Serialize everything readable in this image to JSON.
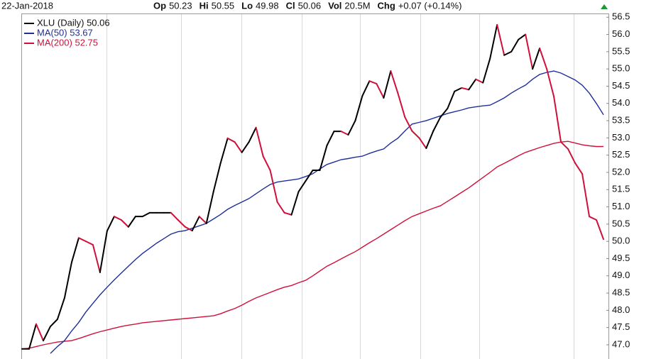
{
  "chart_data": {
    "type": "line",
    "date": "22-Jan-2018",
    "quote": [
      {
        "label": "Op",
        "value": "50.23"
      },
      {
        "label": "Hi",
        "value": "50.55"
      },
      {
        "label": "Lo",
        "value": "49.98"
      },
      {
        "label": "Cl",
        "value": "50.06"
      },
      {
        "label": "Vol",
        "value": "20.5M"
      },
      {
        "label": "Chg",
        "value": "+0.07 (+0.14%)"
      }
    ],
    "ylim": [
      46.6,
      56.6
    ],
    "yticks": [
      {
        "value": 47,
        "label": "47.0"
      },
      47.5,
      {
        "value": 48,
        "label": "48.0"
      },
      48.5,
      {
        "value": 49,
        "label": "49.0"
      },
      49.5,
      {
        "value": 50,
        "label": "50.0"
      },
      50.5,
      {
        "value": 51,
        "label": "51.0"
      },
      51.5,
      {
        "value": 52,
        "label": "52.0"
      },
      52.5,
      {
        "value": 53,
        "label": "53.0"
      },
      53.5,
      {
        "value": 54,
        "label": "54.0"
      },
      54.5,
      {
        "value": 55,
        "label": "55.0"
      },
      55.5,
      {
        "value": 56,
        "label": "56.0"
      },
      56.5
    ],
    "series": [
      {
        "name": "XLU (Daily) 50.06",
        "color": "#000000",
        "down_color": "#d0103a",
        "values": [
          46.88,
          46.88,
          47.6,
          47.12,
          47.53,
          47.74,
          48.36,
          49.39,
          50.1,
          50.0,
          49.9,
          49.1,
          50.3,
          50.72,
          50.62,
          50.42,
          50.72,
          50.72,
          50.83,
          50.83,
          50.83,
          50.83,
          50.62,
          50.42,
          50.31,
          50.72,
          50.52,
          51.44,
          52.27,
          52.99,
          52.88,
          52.58,
          52.88,
          53.3,
          52.47,
          52.06,
          51.14,
          50.83,
          50.77,
          51.44,
          51.75,
          52.06,
          52.06,
          52.78,
          53.19,
          53.19,
          53.09,
          53.5,
          54.22,
          54.65,
          54.57,
          54.16,
          54.94,
          54.3,
          53.6,
          53.2,
          53.0,
          52.7,
          53.2,
          53.6,
          53.85,
          54.35,
          54.45,
          54.4,
          54.7,
          54.6,
          55.3,
          56.28,
          55.4,
          55.5,
          55.85,
          56.0,
          55.0,
          55.6,
          55.0,
          54.2,
          52.88,
          52.68,
          52.27,
          51.96,
          50.72,
          50.62,
          50.06
        ]
      },
      {
        "name": "MA(50) 53.67",
        "color": "#1f2f9a",
        "values": [
          null,
          null,
          null,
          null,
          46.75,
          46.95,
          47.12,
          47.4,
          47.65,
          47.95,
          48.2,
          48.45,
          48.67,
          48.88,
          49.08,
          49.28,
          49.47,
          49.65,
          49.8,
          49.95,
          50.08,
          50.21,
          50.28,
          50.31,
          50.38,
          50.45,
          50.52,
          50.65,
          50.78,
          50.93,
          51.04,
          51.14,
          51.24,
          51.38,
          51.52,
          51.65,
          51.72,
          51.75,
          51.78,
          51.81,
          51.88,
          51.96,
          52.1,
          52.23,
          52.3,
          52.37,
          52.4,
          52.44,
          52.47,
          52.55,
          52.62,
          52.68,
          52.85,
          52.99,
          53.2,
          53.4,
          53.45,
          53.5,
          53.57,
          53.64,
          53.71,
          53.76,
          53.81,
          53.87,
          53.9,
          53.93,
          53.95,
          54.05,
          54.16,
          54.3,
          54.42,
          54.53,
          54.7,
          54.84,
          54.9,
          54.94,
          54.88,
          54.78,
          54.68,
          54.53,
          54.3,
          54.0,
          53.67
        ]
      },
      {
        "name": "MA(200) 52.75",
        "color": "#d0103a",
        "values": [
          46.88,
          46.9,
          46.95,
          47.0,
          47.04,
          47.08,
          47.1,
          47.12,
          47.18,
          47.25,
          47.32,
          47.38,
          47.43,
          47.48,
          47.53,
          47.57,
          47.6,
          47.64,
          47.66,
          47.68,
          47.7,
          47.72,
          47.74,
          47.76,
          47.78,
          47.8,
          47.82,
          47.84,
          47.9,
          47.98,
          48.05,
          48.15,
          48.26,
          48.36,
          48.44,
          48.52,
          48.6,
          48.67,
          48.72,
          48.8,
          48.87,
          49.0,
          49.14,
          49.28,
          49.38,
          49.49,
          49.6,
          49.7,
          49.83,
          49.96,
          50.08,
          50.21,
          50.34,
          50.47,
          50.6,
          50.72,
          50.8,
          50.88,
          50.96,
          51.03,
          51.16,
          51.29,
          51.42,
          51.55,
          51.7,
          51.85,
          52.0,
          52.16,
          52.26,
          52.37,
          52.48,
          52.58,
          52.65,
          52.72,
          52.78,
          52.84,
          52.88,
          52.9,
          52.85,
          52.8,
          52.77,
          52.75,
          52.75
        ]
      }
    ]
  }
}
